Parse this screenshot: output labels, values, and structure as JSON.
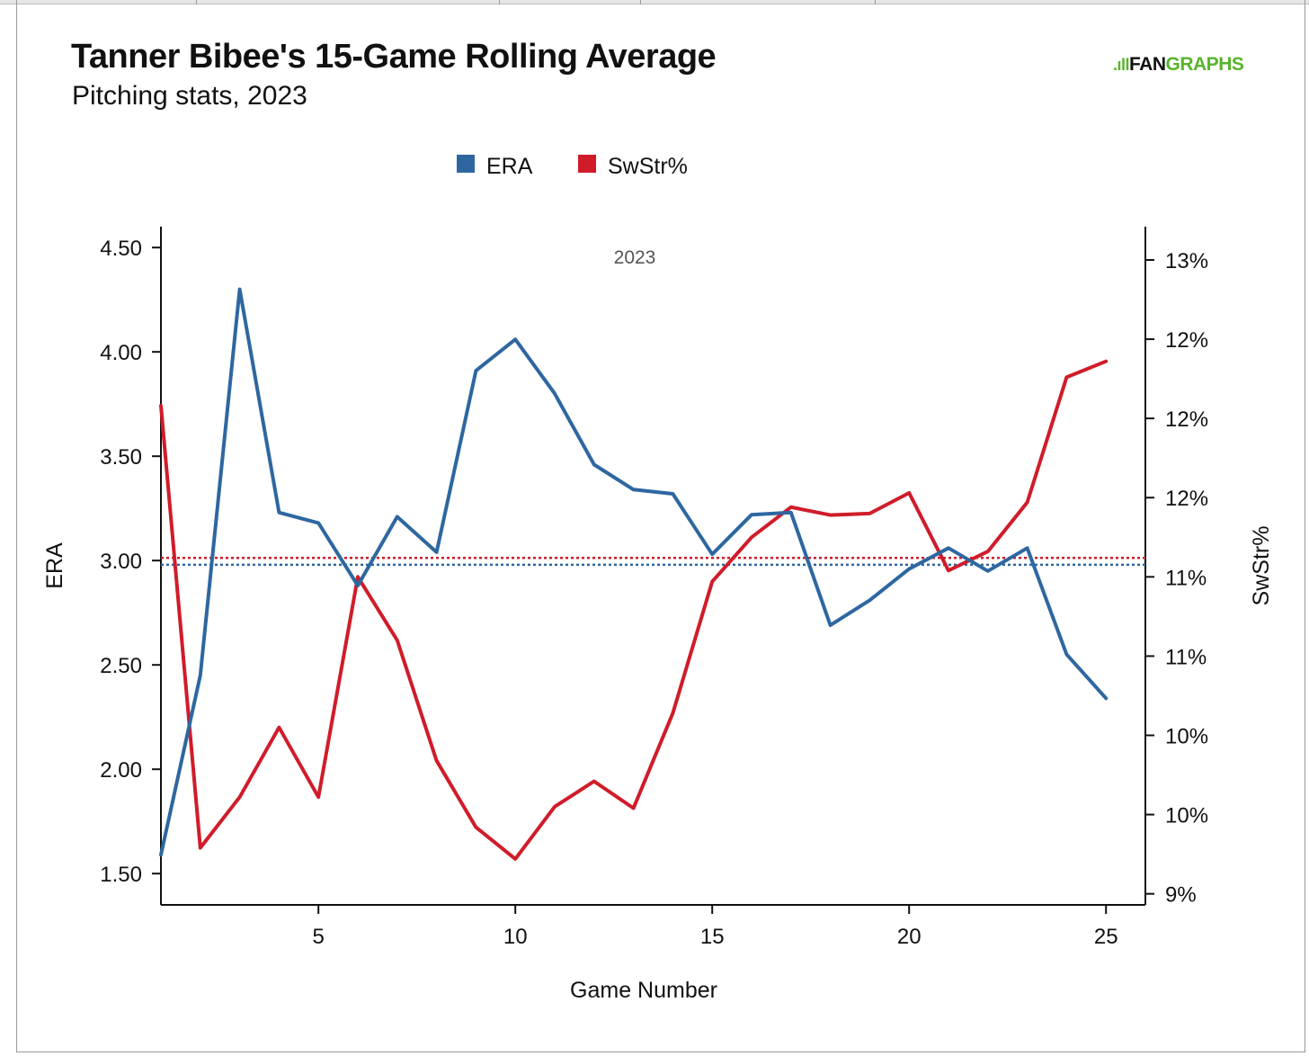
{
  "header": {
    "title": "Tanner Bibee's 15-Game Rolling Average",
    "subtitle": "Pitching stats, 2023",
    "logo_mark": ".ıll",
    "logo_fan": "FAN",
    "logo_graphs": "GRAPHS"
  },
  "colors": {
    "era": "#2e67a0",
    "swstr": "#d01c2a",
    "logo_green": "#59b32c"
  },
  "chart_data": {
    "type": "line",
    "annotation": "2023",
    "xlabel": "Game Number",
    "ylabel_left": "ERA",
    "ylabel_right": "SwStr%",
    "xlim": [
      1,
      26
    ],
    "xticks": [
      5,
      10,
      15,
      20,
      25
    ],
    "ylim_left": [
      1.35,
      4.6
    ],
    "yticks_left": [
      1.5,
      2.0,
      2.5,
      3.0,
      3.5,
      4.0,
      4.5
    ],
    "ytick_labels_left": [
      "1.50",
      "2.00",
      "2.50",
      "3.00",
      "3.50",
      "4.00",
      "4.50"
    ],
    "ylim_right": [
      8.93,
      13.21
    ],
    "yticks_right": [
      9,
      9.5,
      10,
      10.5,
      11,
      11.5,
      12,
      12.5,
      13
    ],
    "ytick_labels_right": [
      "9%",
      "10%",
      "10%",
      "11%",
      "11%",
      "12%",
      "12%",
      "12%",
      "13%"
    ],
    "legend": [
      "ERA",
      "SwStr%"
    ],
    "x": [
      1,
      2,
      3,
      4,
      5,
      6,
      7,
      8,
      9,
      10,
      11,
      12,
      13,
      14,
      15,
      16,
      17,
      18,
      19,
      20,
      21,
      22,
      23,
      24,
      25
    ],
    "series": [
      {
        "name": "ERA",
        "axis": "left",
        "values": [
          1.59,
          2.45,
          4.3,
          3.23,
          3.18,
          2.88,
          3.21,
          3.04,
          3.91,
          4.06,
          3.8,
          3.46,
          3.34,
          3.32,
          3.03,
          3.22,
          3.23,
          2.69,
          2.81,
          2.96,
          3.06,
          2.95,
          3.06,
          2.55,
          2.34
        ]
      },
      {
        "name": "SwStr%",
        "axis": "right",
        "values": [
          12.08,
          9.29,
          9.61,
          10.05,
          9.61,
          11.0,
          10.6,
          9.84,
          9.42,
          9.22,
          9.55,
          9.71,
          9.54,
          10.14,
          10.97,
          11.25,
          11.44,
          11.39,
          11.4,
          11.53,
          11.04,
          11.16,
          11.47,
          12.26,
          12.36
        ]
      }
    ],
    "reference_lines": [
      {
        "name": "ERA average",
        "axis": "left",
        "value": 2.98
      },
      {
        "name": "SwStr% average",
        "axis": "right",
        "value": 11.12
      }
    ]
  }
}
